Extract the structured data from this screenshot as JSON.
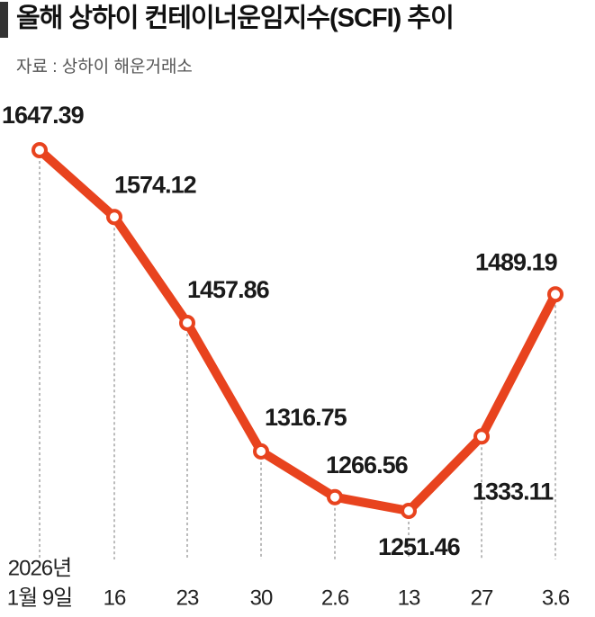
{
  "chart_data": {
    "type": "line",
    "title": "올해 상하이 컨테이너운임지수(SCFI) 추이",
    "source": "자료 : 상하이 해운거래소",
    "x_year": "2026년",
    "categories": [
      "1월 9일",
      "16",
      "23",
      "30",
      "2.6",
      "13",
      "27",
      "3.6"
    ],
    "series": [
      {
        "name": "SCFI",
        "color": "#e8431e",
        "values": [
          1647.39,
          1574.12,
          1457.86,
          1316.75,
          1266.56,
          1251.46,
          1333.11,
          1489.19
        ]
      }
    ]
  }
}
